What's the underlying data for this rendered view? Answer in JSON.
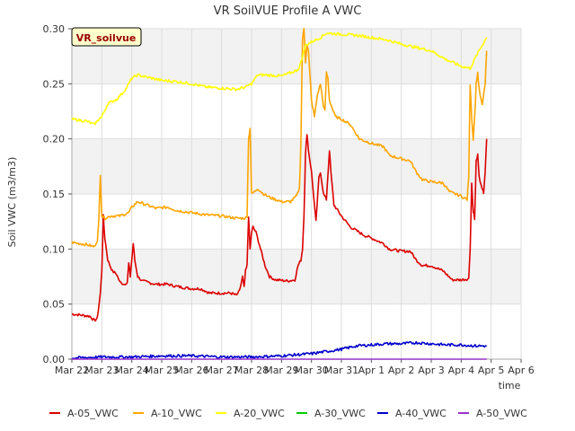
{
  "chart_data": {
    "type": "line",
    "title": "VR SoilVUE Profile A VWC",
    "xlabel": "time",
    "ylabel": "Soil VWC (m3/m3)",
    "site_label": "VR_soilvue",
    "xlim": [
      0,
      15
    ],
    "ylim": [
      0,
      0.3
    ],
    "yticks": [
      0.0,
      0.05,
      0.1,
      0.15,
      0.2,
      0.25,
      0.3
    ],
    "ytick_labels": [
      "0.00",
      "0.05",
      "0.10",
      "0.15",
      "0.20",
      "0.25",
      "0.30"
    ],
    "xticks": [
      0,
      1,
      2,
      3,
      4,
      5,
      6,
      7,
      8,
      9,
      10,
      11,
      12,
      13,
      14,
      15
    ],
    "xtick_labels": [
      "Mar 22",
      "Mar 23",
      "Mar 24",
      "Mar 25",
      "Mar 26",
      "Mar 27",
      "Mar 28",
      "Mar 29",
      "Mar 30",
      "Mar 31",
      "Apr 1",
      "Apr 2",
      "Apr 3",
      "Apr 4",
      "Apr 5",
      "Apr 6"
    ],
    "series": [
      {
        "name": "A-05_VWC",
        "color": "#dd0000",
        "points": [
          [
            0.0,
            0.041
          ],
          [
            0.6,
            0.039
          ],
          [
            0.75,
            0.035
          ],
          [
            0.85,
            0.037
          ],
          [
            0.95,
            0.06
          ],
          [
            1.0,
            0.08
          ],
          [
            1.05,
            0.13
          ],
          [
            1.1,
            0.11
          ],
          [
            1.2,
            0.09
          ],
          [
            1.35,
            0.08
          ],
          [
            1.5,
            0.077
          ],
          [
            1.6,
            0.07
          ],
          [
            1.75,
            0.068
          ],
          [
            1.85,
            0.07
          ],
          [
            1.9,
            0.087
          ],
          [
            1.95,
            0.075
          ],
          [
            2.05,
            0.105
          ],
          [
            2.1,
            0.09
          ],
          [
            2.2,
            0.075
          ],
          [
            2.35,
            0.071
          ],
          [
            2.5,
            0.07
          ],
          [
            2.8,
            0.068
          ],
          [
            3.2,
            0.068
          ],
          [
            3.5,
            0.066
          ],
          [
            4.0,
            0.064
          ],
          [
            4.3,
            0.064
          ],
          [
            4.6,
            0.06
          ],
          [
            5.0,
            0.06
          ],
          [
            5.3,
            0.06
          ],
          [
            5.5,
            0.058
          ],
          [
            5.6,
            0.062
          ],
          [
            5.7,
            0.075
          ],
          [
            5.75,
            0.065
          ],
          [
            5.8,
            0.08
          ],
          [
            5.85,
            0.085
          ],
          [
            5.9,
            0.13
          ],
          [
            5.95,
            0.1
          ],
          [
            6.0,
            0.115
          ],
          [
            6.05,
            0.12
          ],
          [
            6.15,
            0.115
          ],
          [
            6.3,
            0.1
          ],
          [
            6.45,
            0.085
          ],
          [
            6.6,
            0.075
          ],
          [
            6.8,
            0.072
          ],
          [
            7.2,
            0.071
          ],
          [
            7.45,
            0.072
          ],
          [
            7.55,
            0.085
          ],
          [
            7.65,
            0.09
          ],
          [
            7.7,
            0.1
          ],
          [
            7.75,
            0.13
          ],
          [
            7.8,
            0.185
          ],
          [
            7.85,
            0.205
          ],
          [
            7.9,
            0.19
          ],
          [
            8.0,
            0.17
          ],
          [
            8.1,
            0.14
          ],
          [
            8.15,
            0.125
          ],
          [
            8.25,
            0.165
          ],
          [
            8.3,
            0.17
          ],
          [
            8.4,
            0.15
          ],
          [
            8.5,
            0.145
          ],
          [
            8.6,
            0.19
          ],
          [
            8.65,
            0.17
          ],
          [
            8.75,
            0.14
          ],
          [
            9.0,
            0.13
          ],
          [
            9.3,
            0.12
          ],
          [
            9.6,
            0.115
          ],
          [
            9.8,
            0.112
          ],
          [
            10.0,
            0.11
          ],
          [
            10.4,
            0.105
          ],
          [
            10.6,
            0.1
          ],
          [
            11.0,
            0.098
          ],
          [
            11.3,
            0.098
          ],
          [
            11.5,
            0.09
          ],
          [
            11.7,
            0.085
          ],
          [
            12.0,
            0.085
          ],
          [
            12.4,
            0.08
          ],
          [
            12.7,
            0.072
          ],
          [
            13.0,
            0.072
          ],
          [
            13.25,
            0.073
          ],
          [
            13.3,
            0.1
          ],
          [
            13.35,
            0.16
          ],
          [
            13.4,
            0.135
          ],
          [
            13.45,
            0.127
          ],
          [
            13.5,
            0.18
          ],
          [
            13.55,
            0.185
          ],
          [
            13.6,
            0.165
          ],
          [
            13.7,
            0.155
          ],
          [
            13.75,
            0.15
          ],
          [
            13.8,
            0.17
          ],
          [
            13.85,
            0.2
          ]
        ]
      },
      {
        "name": "A-10_VWC",
        "color": "#ffa500",
        "points": [
          [
            0.0,
            0.106
          ],
          [
            0.5,
            0.104
          ],
          [
            0.75,
            0.102
          ],
          [
            0.85,
            0.108
          ],
          [
            0.9,
            0.125
          ],
          [
            0.95,
            0.168
          ],
          [
            1.0,
            0.13
          ],
          [
            1.1,
            0.128
          ],
          [
            1.3,
            0.13
          ],
          [
            1.6,
            0.13
          ],
          [
            1.9,
            0.133
          ],
          [
            2.0,
            0.138
          ],
          [
            2.2,
            0.143
          ],
          [
            2.5,
            0.14
          ],
          [
            2.8,
            0.137
          ],
          [
            3.2,
            0.138
          ],
          [
            3.5,
            0.135
          ],
          [
            4.0,
            0.133
          ],
          [
            4.5,
            0.131
          ],
          [
            5.0,
            0.13
          ],
          [
            5.5,
            0.128
          ],
          [
            5.8,
            0.128
          ],
          [
            5.85,
            0.13
          ],
          [
            5.9,
            0.2
          ],
          [
            5.95,
            0.21
          ],
          [
            6.0,
            0.15
          ],
          [
            6.1,
            0.152
          ],
          [
            6.2,
            0.155
          ],
          [
            6.4,
            0.15
          ],
          [
            6.6,
            0.147
          ],
          [
            6.8,
            0.145
          ],
          [
            7.0,
            0.143
          ],
          [
            7.3,
            0.143
          ],
          [
            7.5,
            0.148
          ],
          [
            7.6,
            0.155
          ],
          [
            7.65,
            0.2
          ],
          [
            7.7,
            0.29
          ],
          [
            7.75,
            0.3
          ],
          [
            7.8,
            0.27
          ],
          [
            7.85,
            0.285
          ],
          [
            7.9,
            0.28
          ],
          [
            8.0,
            0.235
          ],
          [
            8.1,
            0.22
          ],
          [
            8.2,
            0.24
          ],
          [
            8.3,
            0.25
          ],
          [
            8.4,
            0.23
          ],
          [
            8.45,
            0.225
          ],
          [
            8.5,
            0.26
          ],
          [
            8.55,
            0.255
          ],
          [
            8.6,
            0.235
          ],
          [
            8.8,
            0.22
          ],
          [
            9.0,
            0.218
          ],
          [
            9.3,
            0.213
          ],
          [
            9.6,
            0.2
          ],
          [
            10.0,
            0.196
          ],
          [
            10.4,
            0.193
          ],
          [
            10.6,
            0.185
          ],
          [
            11.0,
            0.182
          ],
          [
            11.3,
            0.18
          ],
          [
            11.5,
            0.17
          ],
          [
            11.7,
            0.163
          ],
          [
            12.0,
            0.161
          ],
          [
            12.4,
            0.16
          ],
          [
            12.6,
            0.152
          ],
          [
            13.0,
            0.148
          ],
          [
            13.2,
            0.145
          ],
          [
            13.25,
            0.165
          ],
          [
            13.3,
            0.25
          ],
          [
            13.35,
            0.22
          ],
          [
            13.4,
            0.2
          ],
          [
            13.45,
            0.22
          ],
          [
            13.5,
            0.25
          ],
          [
            13.55,
            0.26
          ],
          [
            13.6,
            0.245
          ],
          [
            13.7,
            0.23
          ],
          [
            13.8,
            0.25
          ],
          [
            13.85,
            0.28
          ]
        ]
      },
      {
        "name": "A-20_VWC",
        "color": "#ffff00",
        "points": [
          [
            0.0,
            0.218
          ],
          [
            0.5,
            0.216
          ],
          [
            0.75,
            0.213
          ],
          [
            0.9,
            0.218
          ],
          [
            1.0,
            0.22
          ],
          [
            1.2,
            0.232
          ],
          [
            1.5,
            0.236
          ],
          [
            1.8,
            0.245
          ],
          [
            2.0,
            0.255
          ],
          [
            2.2,
            0.258
          ],
          [
            2.5,
            0.256
          ],
          [
            3.0,
            0.253
          ],
          [
            3.5,
            0.252
          ],
          [
            4.0,
            0.25
          ],
          [
            4.5,
            0.247
          ],
          [
            5.0,
            0.246
          ],
          [
            5.5,
            0.245
          ],
          [
            5.8,
            0.247
          ],
          [
            6.0,
            0.25
          ],
          [
            6.2,
            0.258
          ],
          [
            6.5,
            0.258
          ],
          [
            7.0,
            0.257
          ],
          [
            7.5,
            0.262
          ],
          [
            7.6,
            0.265
          ],
          [
            7.7,
            0.275
          ],
          [
            7.8,
            0.285
          ],
          [
            8.0,
            0.288
          ],
          [
            8.3,
            0.292
          ],
          [
            8.5,
            0.296
          ],
          [
            9.0,
            0.295
          ],
          [
            9.5,
            0.294
          ],
          [
            10.0,
            0.292
          ],
          [
            10.5,
            0.29
          ],
          [
            11.0,
            0.286
          ],
          [
            11.5,
            0.283
          ],
          [
            12.0,
            0.28
          ],
          [
            12.5,
            0.272
          ],
          [
            13.0,
            0.266
          ],
          [
            13.3,
            0.264
          ],
          [
            13.5,
            0.275
          ],
          [
            13.7,
            0.285
          ],
          [
            13.85,
            0.292
          ]
        ]
      },
      {
        "name": "A-30_VWC",
        "color": "#00cc00",
        "points": []
      },
      {
        "name": "A-40_VWC",
        "color": "#0000cc",
        "points": [
          [
            0.0,
            0.001
          ],
          [
            1.0,
            0.002
          ],
          [
            2.0,
            0.002
          ],
          [
            3.0,
            0.003
          ],
          [
            4.0,
            0.003
          ],
          [
            5.0,
            0.002
          ],
          [
            6.0,
            0.002
          ],
          [
            7.0,
            0.003
          ],
          [
            7.5,
            0.004
          ],
          [
            8.0,
            0.005
          ],
          [
            8.5,
            0.007
          ],
          [
            9.0,
            0.009
          ],
          [
            9.5,
            0.012
          ],
          [
            10.0,
            0.013
          ],
          [
            10.5,
            0.014
          ],
          [
            11.0,
            0.014
          ],
          [
            11.5,
            0.015
          ],
          [
            12.0,
            0.014
          ],
          [
            12.5,
            0.013
          ],
          [
            13.0,
            0.013
          ],
          [
            13.5,
            0.012
          ],
          [
            13.85,
            0.012
          ]
        ]
      },
      {
        "name": "A-50_VWC",
        "color": "#9932cc",
        "points": [
          [
            0.0,
            0.0
          ],
          [
            13.85,
            0.0
          ]
        ]
      }
    ],
    "legend_position": "bottom"
  }
}
